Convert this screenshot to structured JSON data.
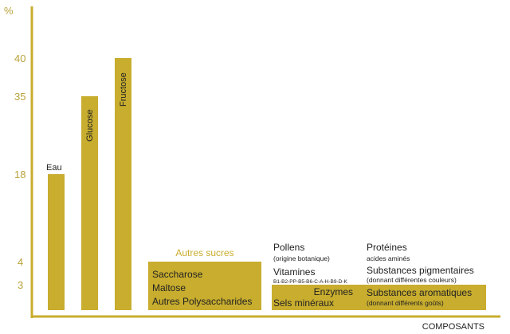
{
  "chart_data": {
    "type": "bar",
    "ylabel": "%",
    "xlabel": "COMPOSANTS",
    "yticks": [
      "40",
      "35",
      "18",
      "4",
      "3"
    ],
    "bars": [
      {
        "label": "Eau",
        "value": 18
      },
      {
        "label": "Glucose",
        "value": 35
      },
      {
        "label": "Fructose",
        "value": 40
      }
    ],
    "groups": [
      {
        "title": "Autres sucres",
        "value": 4,
        "items": [
          "Saccharose",
          "Maltose",
          "Autres Polysaccharides"
        ]
      },
      {
        "value": 3,
        "col1": {
          "pollens": "Pollens",
          "pollens_note": "(origine botanique)",
          "vitamines": "Vitamines",
          "vitamines_note": "B1-B2-PP-B5-B6-C-A-H-B9-D-K",
          "enzymes": "Enzymes",
          "sels": "Sels minéraux"
        },
        "col2": {
          "proteines": "Protéines",
          "proteines_note": "acides aminés",
          "pigments": "Substances pigmentaires",
          "pigments_note": "(donnant différentes couleurs)",
          "aromatiques": "Substances aromatiques",
          "aromatiques_note": "(donnant différents goûts)"
        }
      }
    ],
    "color": "#c8ad2e",
    "axis_color": "#c8ad2e"
  }
}
